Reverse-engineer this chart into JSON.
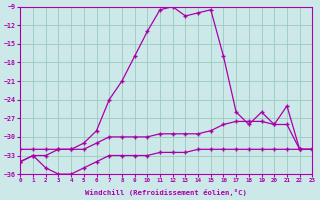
{
  "xlabel": "Windchill (Refroidissement éolien,°C)",
  "bg_color": "#cce8e8",
  "grid_color": "#99ccbb",
  "line_color": "#aa00aa",
  "line_color2": "#cc44cc",
  "xlim": [
    0,
    23
  ],
  "ylim": [
    -36,
    -9
  ],
  "xticks": [
    0,
    1,
    2,
    3,
    4,
    5,
    6,
    7,
    8,
    9,
    10,
    11,
    12,
    13,
    14,
    15,
    16,
    17,
    18,
    19,
    20,
    21,
    22,
    23
  ],
  "yticks": [
    -36,
    -33,
    -30,
    -27,
    -24,
    -21,
    -18,
    -15,
    -12,
    -9
  ],
  "line1_x": [
    0,
    1,
    2,
    3,
    4,
    5,
    6,
    7,
    8,
    9,
    10,
    11,
    12,
    13,
    14,
    15,
    16,
    17,
    18,
    19,
    20,
    21,
    22,
    23
  ],
  "line1_y": [
    -34,
    -33,
    -33,
    -32,
    -32,
    -31,
    -29,
    -24,
    -21,
    -17,
    -13,
    -9.5,
    -9,
    -10.5,
    -10,
    -9.5,
    -17,
    -26,
    -28,
    -26,
    -28,
    -25,
    -32,
    -32
  ],
  "line2_x": [
    0,
    1,
    2,
    3,
    4,
    5,
    6,
    7,
    8,
    9,
    10,
    11,
    12,
    13,
    14,
    15,
    16,
    17,
    18,
    19,
    20,
    21,
    22,
    23
  ],
  "line2_y": [
    -32,
    -32,
    -32,
    -32,
    -32,
    -32,
    -31,
    -30,
    -30,
    -30,
    -30,
    -29.5,
    -29.5,
    -29.5,
    -29.5,
    -29,
    -28,
    -27.5,
    -27.5,
    -27.5,
    -28,
    -28,
    -32,
    -32
  ],
  "line3_x": [
    0,
    1,
    2,
    3,
    4,
    5,
    6,
    7,
    8,
    9,
    10,
    11,
    12,
    13,
    14,
    15,
    16,
    17,
    18,
    19,
    20,
    21,
    22,
    23
  ],
  "line3_y": [
    -34,
    -33,
    -35,
    -36,
    -36,
    -35,
    -34,
    -33,
    -33,
    -33,
    -33,
    -32.5,
    -32.5,
    -32.5,
    -32,
    -32,
    -32,
    -32,
    -32,
    -32,
    -32,
    -32,
    -32,
    -32
  ]
}
